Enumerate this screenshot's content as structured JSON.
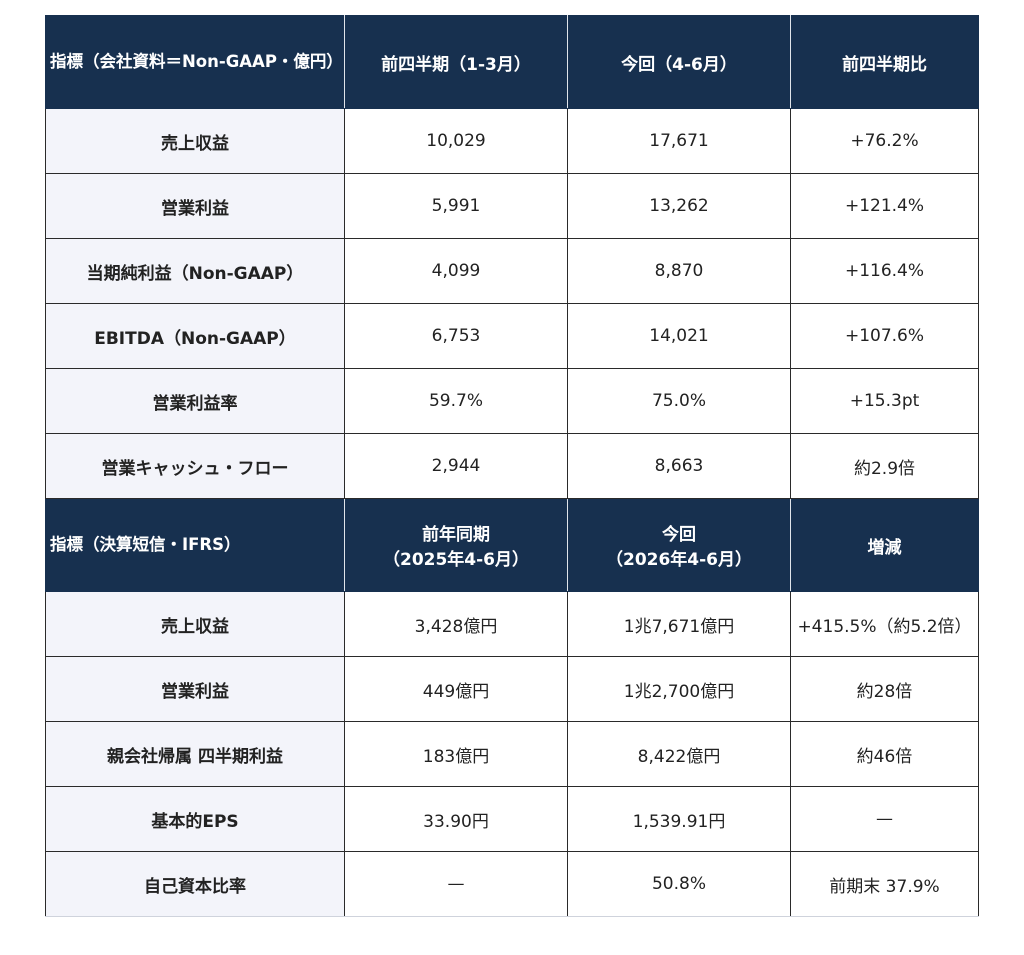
{
  "table1": {
    "headers": [
      "指標（会社資料＝Non-GAAP・億円）",
      "前四半期（1-3月）",
      "今回（4-6月）",
      "前四半期比"
    ],
    "rows": [
      {
        "label": "売上収益",
        "prev": "10,029",
        "curr": "17,671",
        "change": "+76.2%",
        "positive": true
      },
      {
        "label": "営業利益",
        "prev": "5,991",
        "curr": "13,262",
        "change": "+121.4%",
        "positive": true
      },
      {
        "label": "当期純利益（Non-GAAP）",
        "prev": "4,099",
        "curr": "8,870",
        "change": "+116.4%",
        "positive": true
      },
      {
        "label": "EBITDA（Non-GAAP）",
        "prev": "6,753",
        "curr": "14,021",
        "change": "+107.6%",
        "positive": true
      },
      {
        "label": "営業利益率",
        "prev": "59.7%",
        "curr": "75.0%",
        "change": "+15.3pt",
        "positive": false
      },
      {
        "label": "営業キャッシュ・フロー",
        "prev": "2,944",
        "curr": "8,663",
        "change": "約2.9倍",
        "positive": false
      }
    ]
  },
  "table2": {
    "headers": {
      "label": "指標（決算短信・IFRS）",
      "prev_line1": "前年同期",
      "prev_line2": "（2025年4-6月）",
      "curr_line1": "今回",
      "curr_line2": "（2026年4-6月）",
      "change": "増減"
    },
    "rows": [
      {
        "label": "売上収益",
        "prev": "3,428億円",
        "curr": "1兆7,671億円",
        "change": "+415.5%（約5.2倍）",
        "positive": true
      },
      {
        "label": "営業利益",
        "prev": "449億円",
        "curr": "1兆2,700億円",
        "change": "約28倍",
        "positive": false
      },
      {
        "label": "親会社帰属 四半期利益",
        "prev": "183億円",
        "curr": "8,422億円",
        "change": "約46倍",
        "positive": false
      },
      {
        "label": "基本的EPS",
        "prev": "33.90円",
        "curr": "1,539.91円",
        "change": "—",
        "positive": false
      },
      {
        "label": "自己資本比率",
        "prev": "—",
        "curr": "50.8%",
        "change": "前期末 37.9%",
        "positive": false
      }
    ]
  },
  "colors": {
    "header_bg": "#17304f",
    "label_bg": "#f3f4fa",
    "positive_text": "#2e8540"
  }
}
